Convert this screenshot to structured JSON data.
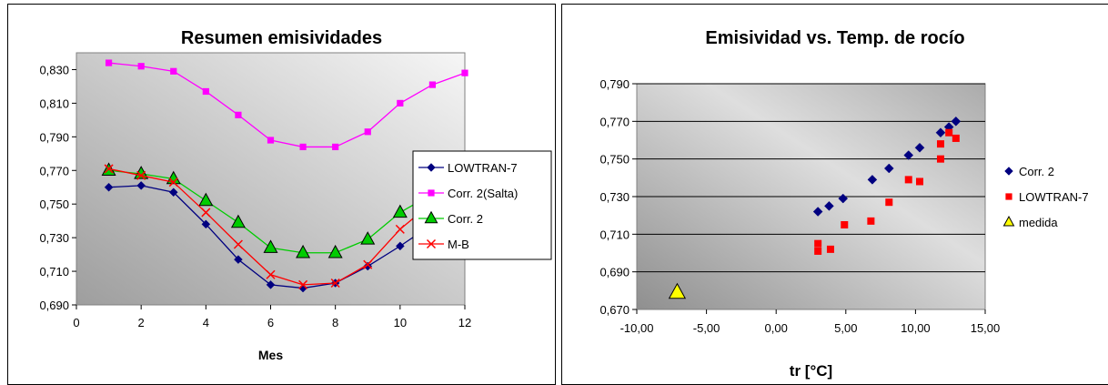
{
  "chart_data": [
    {
      "type": "line",
      "title": "Resumen emisividades",
      "xlabel": "Mes",
      "ylabel": "",
      "xlim": [
        0,
        12
      ],
      "ylim": [
        0.69,
        0.84
      ],
      "x_ticks": [
        "0",
        "2",
        "4",
        "6",
        "8",
        "10",
        "12"
      ],
      "y_ticks": [
        "0,690",
        "0,710",
        "0,730",
        "0,750",
        "0,770",
        "0,790",
        "0,810",
        "0,830"
      ],
      "grid": false,
      "legend_position": "right",
      "categories": [
        1,
        2,
        3,
        4,
        5,
        6,
        7,
        8,
        9,
        10,
        11,
        12
      ],
      "series": [
        {
          "name": "LOWTRAN-7",
          "color": "#000080",
          "marker": "diamond",
          "values": [
            0.76,
            0.761,
            0.757,
            0.738,
            0.717,
            0.702,
            0.7,
            0.703,
            0.713,
            0.725,
            0.738,
            0.749
          ]
        },
        {
          "name": "Corr. 2(Salta)",
          "color": "#ff00ff",
          "marker": "square",
          "values": [
            0.834,
            0.832,
            0.829,
            0.817,
            0.803,
            0.788,
            0.784,
            0.784,
            0.793,
            0.81,
            0.821,
            0.828
          ]
        },
        {
          "name": "Corr. 2",
          "color": "#00cc00",
          "marker": "triangle",
          "values": [
            0.77,
            0.768,
            0.765,
            0.752,
            0.739,
            0.724,
            0.721,
            0.721,
            0.729,
            0.745,
            0.756,
            0.764
          ]
        },
        {
          "name": "M-B",
          "color": "#ff0000",
          "marker": "x",
          "values": [
            0.771,
            0.767,
            0.763,
            0.745,
            0.726,
            0.708,
            0.702,
            0.703,
            0.714,
            0.735,
            0.751,
            0.761
          ]
        }
      ]
    },
    {
      "type": "scatter",
      "title": "Emisividad vs. Temp. de rocío",
      "xlabel": "tr [°C]",
      "ylabel": "",
      "xlim": [
        -10,
        15
      ],
      "ylim": [
        0.67,
        0.79
      ],
      "x_ticks": [
        "-10,00",
        "-5,00",
        "0,00",
        "5,00",
        "10,00",
        "15,00"
      ],
      "y_ticks": [
        "0,670",
        "0,690",
        "0,710",
        "0,730",
        "0,750",
        "0,770",
        "0,790"
      ],
      "grid": true,
      "legend_position": "right",
      "series": [
        {
          "name": "Corr. 2",
          "color": "#000080",
          "marker": "diamond",
          "points": [
            [
              3.0,
              0.722
            ],
            [
              3.8,
              0.725
            ],
            [
              4.8,
              0.729
            ],
            [
              6.9,
              0.739
            ],
            [
              8.1,
              0.745
            ],
            [
              9.5,
              0.752
            ],
            [
              10.3,
              0.756
            ],
            [
              11.8,
              0.764
            ],
            [
              12.4,
              0.767
            ],
            [
              12.9,
              0.77
            ]
          ]
        },
        {
          "name": "LOWTRAN-7",
          "color": "#ff0000",
          "marker": "square",
          "points": [
            [
              3.0,
              0.705
            ],
            [
              3.0,
              0.701
            ],
            [
              3.9,
              0.702
            ],
            [
              4.9,
              0.715
            ],
            [
              6.8,
              0.717
            ],
            [
              8.1,
              0.727
            ],
            [
              9.5,
              0.739
            ],
            [
              10.3,
              0.738
            ],
            [
              11.8,
              0.75
            ],
            [
              11.8,
              0.758
            ],
            [
              12.4,
              0.764
            ],
            [
              12.9,
              0.761
            ]
          ]
        },
        {
          "name": "medida",
          "color": "#ffff00",
          "marker": "triangle",
          "points": [
            [
              -7.1,
              0.679
            ]
          ]
        }
      ]
    }
  ]
}
